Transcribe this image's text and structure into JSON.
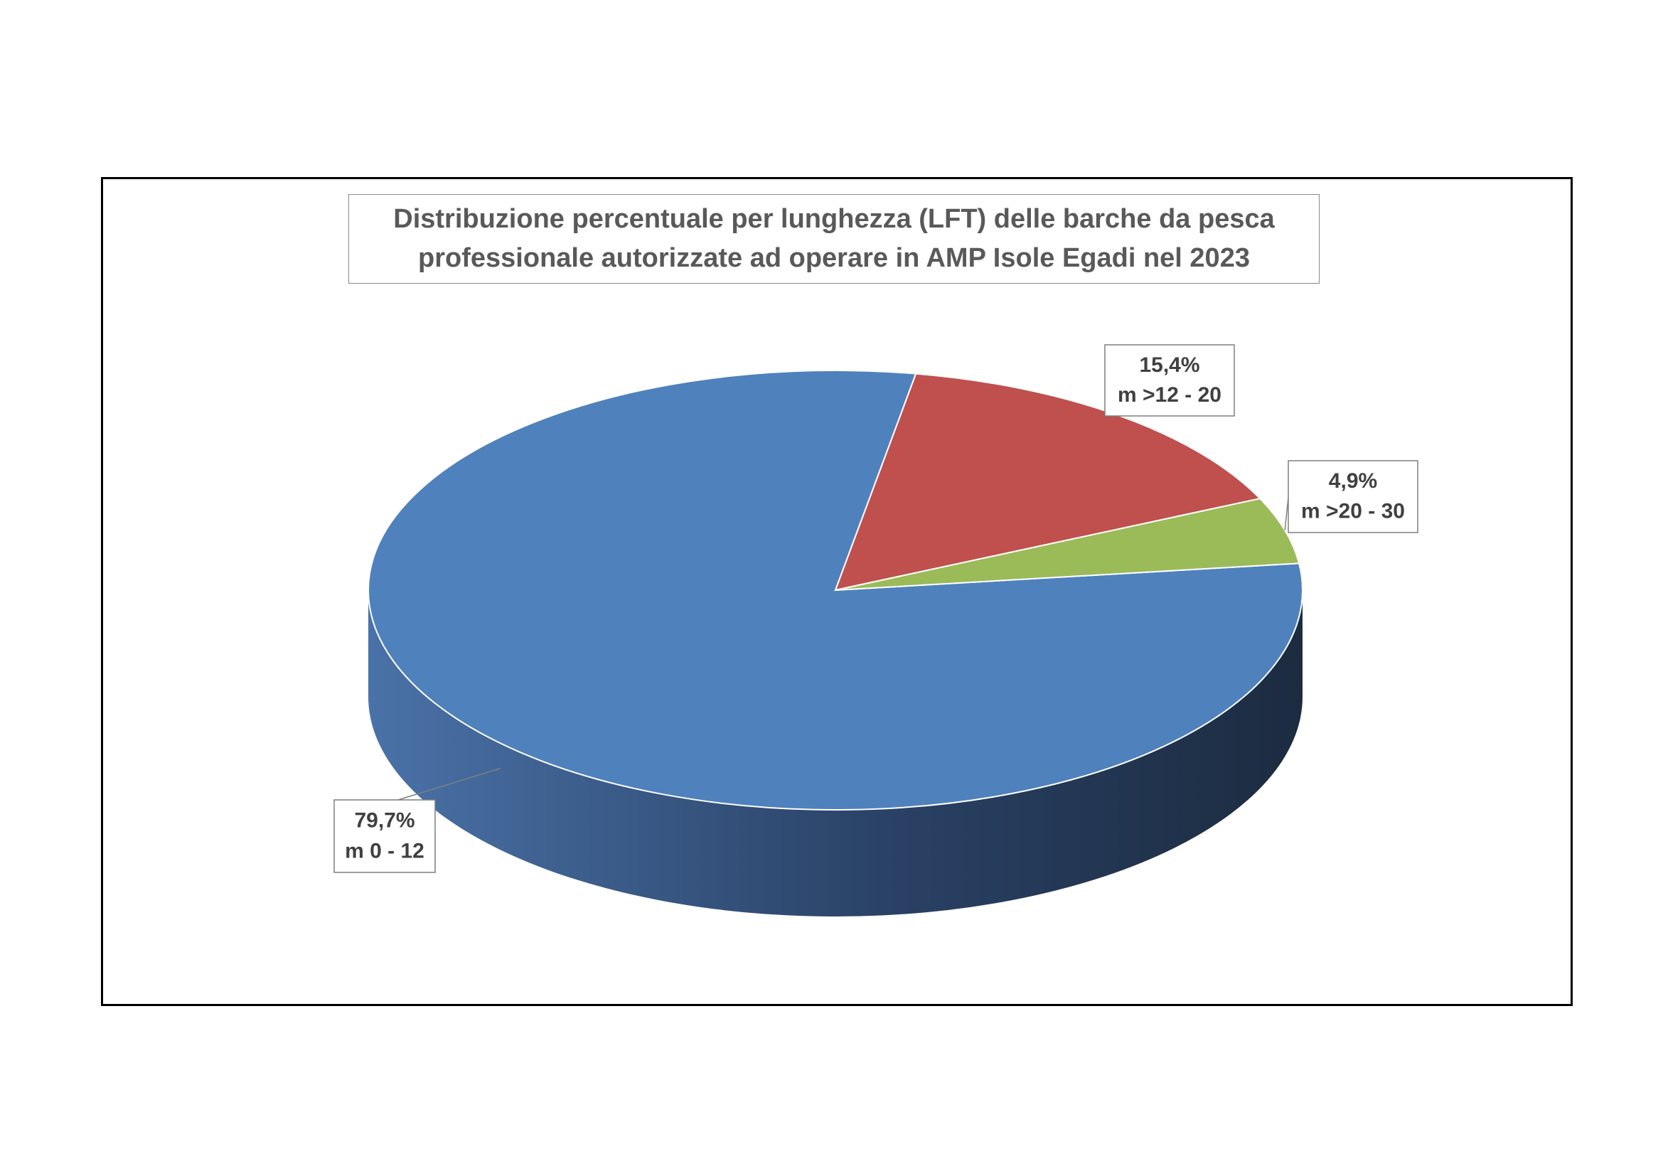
{
  "chart_data": {
    "type": "pie",
    "title": "Distribuzione percentuale per lunghezza (LFT) delle barche da pesca\nprofessionale autorizzate ad operare in AMP Isole Egadi nel 2023",
    "categories": [
      "m 0 - 12",
      "m >12 - 20",
      "m >20 - 30"
    ],
    "values": [
      79.7,
      15.4,
      4.9
    ],
    "value_labels": [
      "79,7%",
      "15,4%",
      "4,9%"
    ],
    "colors": [
      "#4f81bd",
      "#c0504d",
      "#9bbb59"
    ]
  }
}
